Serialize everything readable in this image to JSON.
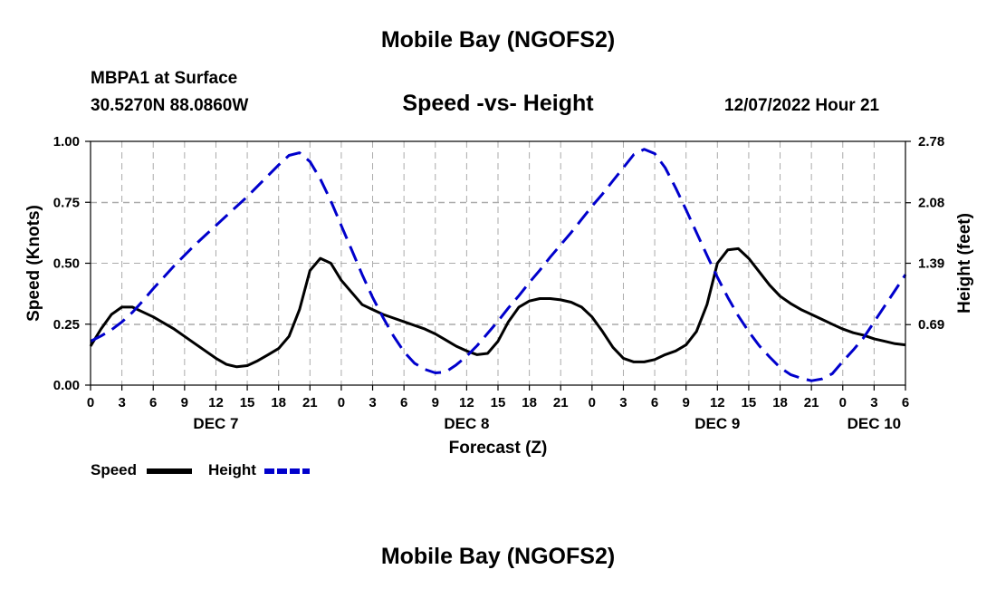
{
  "header": {
    "title": "Mobile Bay (NGOFS2)",
    "station": "MBPA1 at Surface",
    "coords": "30.5270N  88.0860W",
    "subtitle": "Speed -vs- Height",
    "datetime": "12/07/2022 Hour 21"
  },
  "footer": {
    "title": "Mobile Bay (NGOFS2)"
  },
  "legend": {
    "speed_label": "Speed",
    "height_label": "Height"
  },
  "colors": {
    "speed": "#000000",
    "height": "#0000cc",
    "grid": "#aaaaaa"
  },
  "chart_data": {
    "type": "line",
    "title": "Speed -vs- Height",
    "xlabel": "Forecast (Z)",
    "ylabel": "Speed (Knots)",
    "ylabel_right": "Height (feet)",
    "xlim": [
      0,
      78
    ],
    "ylim": [
      0,
      1.0
    ],
    "ylim_right": [
      0,
      2.78
    ],
    "x_ticks": [
      0,
      3,
      6,
      9,
      12,
      15,
      18,
      21,
      24,
      27,
      30,
      33,
      36,
      39,
      42,
      45,
      48,
      51,
      54,
      57,
      60,
      63,
      66,
      69,
      72,
      75,
      78
    ],
    "x_tick_labels": [
      "0",
      "3",
      "6",
      "9",
      "12",
      "15",
      "18",
      "21",
      "0",
      "3",
      "6",
      "9",
      "12",
      "15",
      "18",
      "21",
      "0",
      "3",
      "6",
      "9",
      "12",
      "15",
      "18",
      "21",
      "0",
      "3",
      "6"
    ],
    "date_labels": [
      {
        "x": 12,
        "label": "DEC 7"
      },
      {
        "x": 36,
        "label": "DEC 8"
      },
      {
        "x": 60,
        "label": "DEC 9"
      },
      {
        "x": 75,
        "label": "DEC 10"
      }
    ],
    "y_ticks": [
      0,
      0.25,
      0.5,
      0.75,
      1.0
    ],
    "y_tick_labels": [
      "0.00",
      "0.25",
      "0.50",
      "0.75",
      "1.00"
    ],
    "y_right_ticks": [
      0.69,
      1.39,
      2.08,
      2.78
    ],
    "y_right_tick_labels": [
      "0.69",
      "1.39",
      "2.08",
      "2.78"
    ],
    "grid": true,
    "legend_position": "bottom-left",
    "series": [
      {
        "name": "Speed",
        "axis": "left",
        "style": "solid",
        "x": [
          0,
          1,
          2,
          3,
          4,
          5,
          6,
          7,
          8,
          9,
          10,
          11,
          12,
          13,
          14,
          15,
          16,
          17,
          18,
          19,
          20,
          21,
          22,
          23,
          24,
          25,
          26,
          27,
          28,
          29,
          30,
          31,
          32,
          33,
          34,
          35,
          36,
          37,
          38,
          39,
          40,
          41,
          42,
          43,
          44,
          45,
          46,
          47,
          48,
          49,
          50,
          51,
          52,
          53,
          54,
          55,
          56,
          57,
          58,
          59,
          60,
          61,
          62,
          63,
          64,
          65,
          66,
          67,
          68,
          69,
          70,
          71,
          72,
          73,
          74,
          75,
          76,
          77,
          78
        ],
        "values": [
          0.16,
          0.23,
          0.29,
          0.32,
          0.32,
          0.3,
          0.28,
          0.255,
          0.23,
          0.2,
          0.17,
          0.14,
          0.11,
          0.085,
          0.075,
          0.08,
          0.1,
          0.125,
          0.15,
          0.2,
          0.31,
          0.47,
          0.52,
          0.5,
          0.43,
          0.38,
          0.33,
          0.31,
          0.29,
          0.275,
          0.26,
          0.245,
          0.23,
          0.21,
          0.185,
          0.16,
          0.14,
          0.125,
          0.13,
          0.18,
          0.26,
          0.32,
          0.345,
          0.355,
          0.355,
          0.35,
          0.34,
          0.32,
          0.28,
          0.22,
          0.155,
          0.11,
          0.095,
          0.095,
          0.105,
          0.125,
          0.14,
          0.165,
          0.22,
          0.33,
          0.5,
          0.555,
          0.56,
          0.52,
          0.465,
          0.41,
          0.365,
          0.335,
          0.31,
          0.29,
          0.27,
          0.25,
          0.23,
          0.215,
          0.205,
          0.19,
          0.18,
          0.17,
          0.165
        ]
      },
      {
        "name": "Height",
        "axis": "right",
        "style": "dashed",
        "x": [
          0,
          1,
          2,
          3,
          4,
          5,
          6,
          7,
          8,
          9,
          10,
          11,
          12,
          13,
          14,
          15,
          16,
          17,
          18,
          19,
          20,
          21,
          22,
          23,
          24,
          25,
          26,
          27,
          28,
          29,
          30,
          31,
          32,
          33,
          34,
          35,
          36,
          37,
          38,
          39,
          40,
          41,
          42,
          43,
          44,
          45,
          46,
          47,
          48,
          49,
          50,
          51,
          52,
          53,
          54,
          55,
          56,
          57,
          58,
          59,
          60,
          61,
          62,
          63,
          64,
          65,
          66,
          67,
          68,
          69,
          70,
          71,
          72,
          73,
          74,
          75,
          76,
          77,
          78
        ],
        "values": [
          0.5,
          0.56,
          0.63,
          0.72,
          0.83,
          0.96,
          1.1,
          1.23,
          1.36,
          1.48,
          1.6,
          1.71,
          1.82,
          1.93,
          2.04,
          2.15,
          2.27,
          2.39,
          2.51,
          2.62,
          2.65,
          2.55,
          2.35,
          2.1,
          1.82,
          1.54,
          1.26,
          1.0,
          0.77,
          0.56,
          0.38,
          0.25,
          0.18,
          0.14,
          0.15,
          0.23,
          0.33,
          0.45,
          0.59,
          0.73,
          0.88,
          1.02,
          1.17,
          1.31,
          1.46,
          1.6,
          1.74,
          1.89,
          2.04,
          2.18,
          2.33,
          2.48,
          2.63,
          2.69,
          2.64,
          2.48,
          2.25,
          2.0,
          1.74,
          1.48,
          1.23,
          1.0,
          0.79,
          0.61,
          0.45,
          0.32,
          0.2,
          0.12,
          0.08,
          0.05,
          0.07,
          0.13,
          0.27,
          0.4,
          0.54,
          0.72,
          0.9,
          1.08,
          1.26
        ]
      }
    ]
  }
}
